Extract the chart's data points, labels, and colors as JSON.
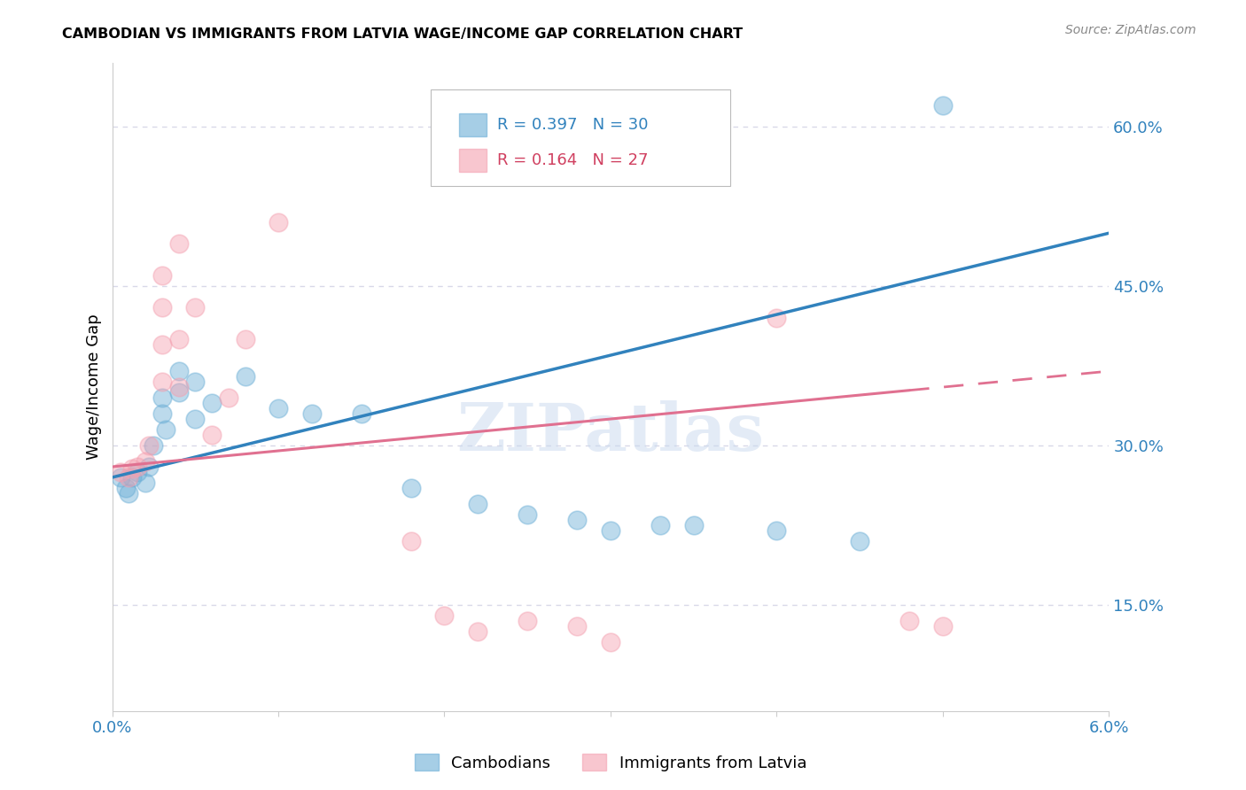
{
  "title": "CAMBODIAN VS IMMIGRANTS FROM LATVIA WAGE/INCOME GAP CORRELATION CHART",
  "source": "Source: ZipAtlas.com",
  "ylabel": "Wage/Income Gap",
  "right_yticks": [
    "60.0%",
    "45.0%",
    "30.0%",
    "15.0%"
  ],
  "right_ytick_vals": [
    0.6,
    0.45,
    0.3,
    0.15
  ],
  "xmin": 0.0,
  "xmax": 0.06,
  "ymin": 0.05,
  "ymax": 0.66,
  "legend_r1": "0.397",
  "legend_n1": "30",
  "legend_r2": "0.164",
  "legend_n2": "27",
  "cambodian_color": "#6baed6",
  "latvian_color": "#f4a0b0",
  "cambodian_points": [
    [
      0.0005,
      0.27
    ],
    [
      0.0008,
      0.26
    ],
    [
      0.001,
      0.255
    ],
    [
      0.0012,
      0.27
    ],
    [
      0.0015,
      0.275
    ],
    [
      0.002,
      0.265
    ],
    [
      0.0022,
      0.28
    ],
    [
      0.0025,
      0.3
    ],
    [
      0.003,
      0.33
    ],
    [
      0.003,
      0.345
    ],
    [
      0.0032,
      0.315
    ],
    [
      0.004,
      0.37
    ],
    [
      0.004,
      0.35
    ],
    [
      0.005,
      0.36
    ],
    [
      0.005,
      0.325
    ],
    [
      0.006,
      0.34
    ],
    [
      0.008,
      0.365
    ],
    [
      0.01,
      0.335
    ],
    [
      0.012,
      0.33
    ],
    [
      0.015,
      0.33
    ],
    [
      0.018,
      0.26
    ],
    [
      0.022,
      0.245
    ],
    [
      0.025,
      0.235
    ],
    [
      0.028,
      0.23
    ],
    [
      0.03,
      0.22
    ],
    [
      0.033,
      0.225
    ],
    [
      0.035,
      0.225
    ],
    [
      0.04,
      0.22
    ],
    [
      0.045,
      0.21
    ],
    [
      0.05,
      0.62
    ]
  ],
  "latvian_points": [
    [
      0.0005,
      0.275
    ],
    [
      0.001,
      0.27
    ],
    [
      0.0012,
      0.278
    ],
    [
      0.0015,
      0.28
    ],
    [
      0.002,
      0.285
    ],
    [
      0.0022,
      0.3
    ],
    [
      0.003,
      0.43
    ],
    [
      0.003,
      0.46
    ],
    [
      0.003,
      0.395
    ],
    [
      0.003,
      0.36
    ],
    [
      0.004,
      0.49
    ],
    [
      0.004,
      0.4
    ],
    [
      0.004,
      0.355
    ],
    [
      0.005,
      0.43
    ],
    [
      0.006,
      0.31
    ],
    [
      0.007,
      0.345
    ],
    [
      0.008,
      0.4
    ],
    [
      0.01,
      0.51
    ],
    [
      0.018,
      0.21
    ],
    [
      0.02,
      0.14
    ],
    [
      0.022,
      0.125
    ],
    [
      0.025,
      0.135
    ],
    [
      0.028,
      0.13
    ],
    [
      0.03,
      0.115
    ],
    [
      0.04,
      0.42
    ],
    [
      0.048,
      0.135
    ],
    [
      0.05,
      0.13
    ]
  ],
  "watermark": "ZIPatlas",
  "bg_color": "#ffffff",
  "grid_color": "#d8d8e8"
}
